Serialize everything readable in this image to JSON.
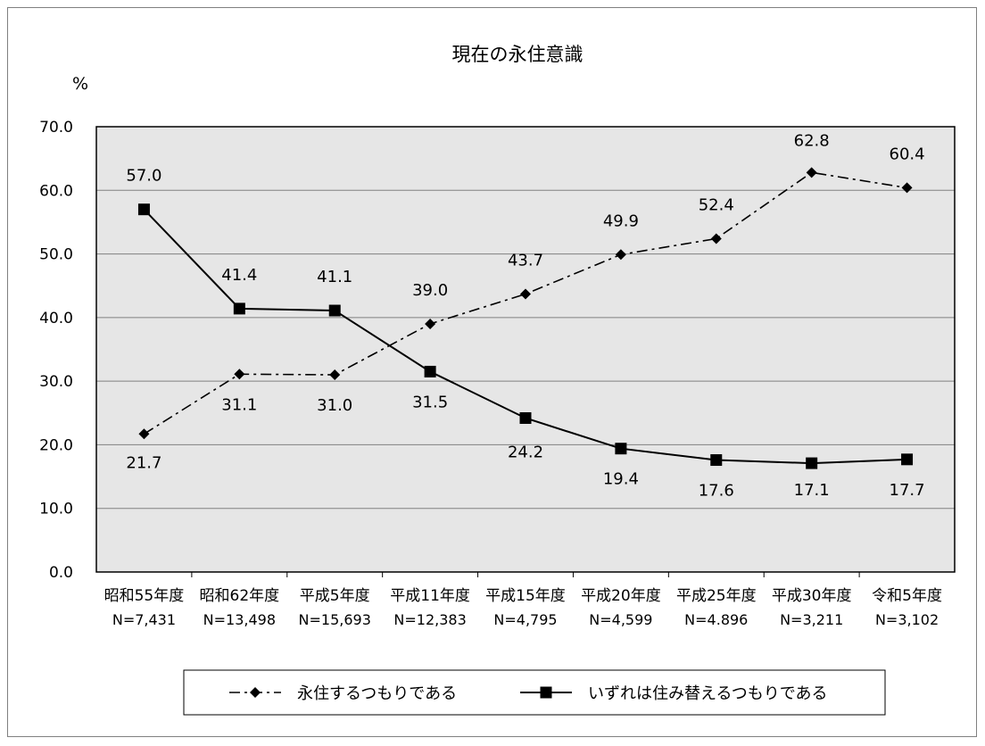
{
  "chart_data": {
    "type": "line",
    "title": "現在の永住意識",
    "ylabel": "%",
    "xlabel": "",
    "ylim": [
      0,
      70
    ],
    "yticks": [
      "0.0",
      "10.0",
      "20.0",
      "30.0",
      "40.0",
      "50.0",
      "60.0",
      "70.0"
    ],
    "ytick_values": [
      0,
      10,
      20,
      30,
      40,
      50,
      60,
      70
    ],
    "grid": true,
    "legend_position": "bottom",
    "categories": [
      "昭和55年度",
      "昭和62年度",
      "平成5年度",
      "平成11年度",
      "平成15年度",
      "平成20年度",
      "平成25年度",
      "平成30年度",
      "令和5年度"
    ],
    "sample_sizes": [
      "N=7,431",
      "N=13,498",
      "N=15,693",
      "N=12,383",
      "N=4,795",
      "N=4,599",
      "N=4.896",
      "N=3,211",
      "N=3,102"
    ],
    "series": [
      {
        "name": "永住するつもりである",
        "values": [
          21.7,
          31.1,
          31.0,
          39.0,
          43.7,
          49.9,
          52.4,
          62.8,
          60.4
        ],
        "labels": [
          "21.7",
          "31.1",
          "31.0",
          "39.0",
          "43.7",
          "49.9",
          "52.4",
          "62.8",
          "60.4"
        ],
        "marker": "diamond",
        "line_style": "dash-dot",
        "color": "#000000"
      },
      {
        "name": "いずれは住み替えるつもりである",
        "values": [
          57.0,
          41.4,
          41.1,
          31.5,
          24.2,
          19.4,
          17.6,
          17.1,
          17.7
        ],
        "labels": [
          "57.0",
          "41.4",
          "41.1",
          "31.5",
          "24.2",
          "19.4",
          "17.6",
          "17.1",
          "17.7"
        ],
        "marker": "square",
        "line_style": "solid",
        "color": "#000000"
      }
    ],
    "plot_background": "#e6e6e6",
    "grid_color": "#808080"
  }
}
